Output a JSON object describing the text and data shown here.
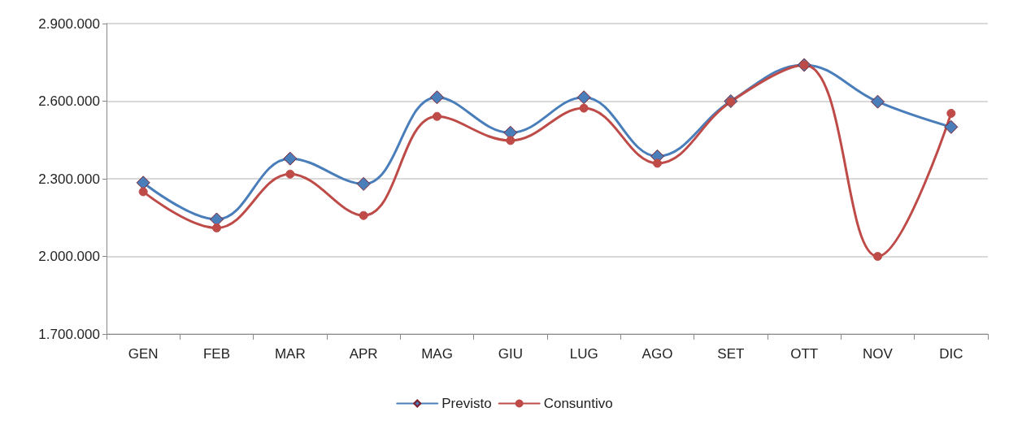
{
  "chart_data": {
    "type": "line",
    "categories": [
      "GEN",
      "FEB",
      "MAR",
      "APR",
      "MAG",
      "GIU",
      "LUG",
      "AGO",
      "SET",
      "OTT",
      "NOV",
      "DIC"
    ],
    "series": [
      {
        "name": "Previsto",
        "color": "#4a7ebb",
        "marker": "diamond",
        "values": [
          2285000,
          2143000,
          2378000,
          2280000,
          2615000,
          2478000,
          2615000,
          2387000,
          2600000,
          2740000,
          2598000,
          2500000
        ]
      },
      {
        "name": "Consuntivo",
        "color": "#be4b48",
        "marker": "circle",
        "values": [
          2250000,
          2110000,
          2318000,
          2158000,
          2541000,
          2448000,
          2573000,
          2360000,
          2598000,
          2740000,
          2000000,
          2553000
        ]
      }
    ],
    "ylim": [
      1700000,
      2900000
    ],
    "yticks": [
      {
        "value": 1700000,
        "label": "1.700.000"
      },
      {
        "value": 2000000,
        "label": "2.000.000"
      },
      {
        "value": 2300000,
        "label": "2.300.000"
      },
      {
        "value": 2600000,
        "label": "2.600.000"
      },
      {
        "value": 2900000,
        "label": "2.900.000"
      }
    ],
    "grid": "y",
    "legend": "bottom",
    "line_style": "solid"
  }
}
